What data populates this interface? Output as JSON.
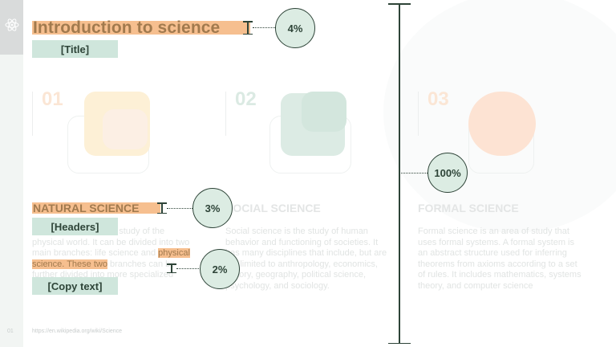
{
  "slide": {
    "title": "Introduction to science",
    "number": "01",
    "source": "https://en.wikipedia.org/wiki/Science"
  },
  "annotations": {
    "tags": {
      "title": "[Title]",
      "headers": "[Headers]",
      "copy": "[Copy text]"
    },
    "measures": {
      "title_pct": "4%",
      "header_pct": "3%",
      "copy_pct": "2%",
      "column_pct": "100%"
    }
  },
  "columns": [
    {
      "number": "01",
      "header": "NATURAL SCIENCE",
      "body_before": "Natural science is the study of the physical world. It can be divided into two main branches: life science and",
      "body_highlight": "physical science. These two",
      "body_after": "branches can be further divided into more specialized disciplines."
    },
    {
      "number": "02",
      "header": "SOCIAL SCIENCE",
      "body": "Social science is the study of human behavior and functioning of societies. It has many disciplines that include, but are not limited to anthropology, economics, history, geography, political science, psychology, and sociology."
    },
    {
      "number": "03",
      "header": "FORMAL SCIENCE",
      "body": "Formal science is an area of study that uses formal systems. A formal system is an abstract structure used for inferring theorems from axioms according to a set of rules. It includes mathematics, systems theory, and computer science"
    }
  ],
  "colors": {
    "highlight_orange": "#f6bf8f",
    "tag_green": "#cfe6dc",
    "measure_dark": "#2e4438"
  }
}
